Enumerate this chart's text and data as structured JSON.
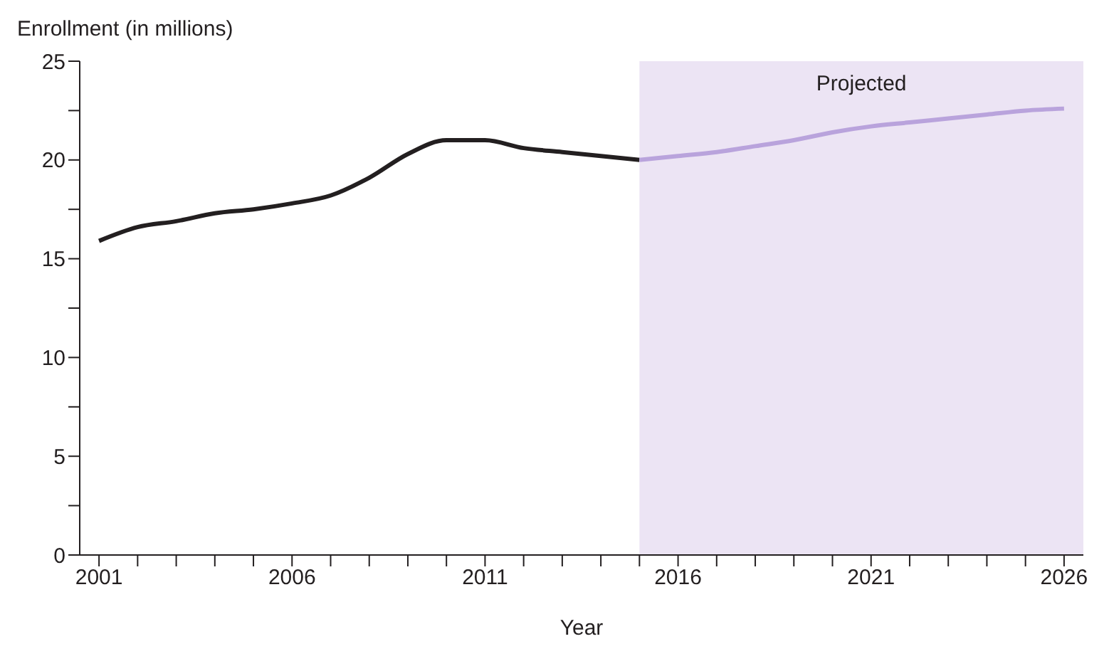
{
  "chart_data": {
    "type": "line",
    "ylabel": "Enrollment (in millions)",
    "xlabel": "Year",
    "x": [
      2001,
      2002,
      2003,
      2004,
      2005,
      2006,
      2007,
      2008,
      2009,
      2010,
      2011,
      2012,
      2013,
      2014,
      2015,
      2016,
      2017,
      2018,
      2019,
      2020,
      2021,
      2022,
      2023,
      2024,
      2025,
      2026
    ],
    "series": [
      {
        "color": "#231f20",
        "values": [
          15.9,
          16.6,
          16.9,
          17.3,
          17.5,
          17.8,
          18.2,
          19.1,
          20.3,
          21.0,
          21.0,
          20.6,
          20.4,
          20.2,
          20.0,
          null,
          null,
          null,
          null,
          null,
          null,
          null,
          null,
          null,
          null,
          null
        ]
      },
      {
        "color": "#b9a3dc",
        "values": [
          null,
          null,
          null,
          null,
          null,
          null,
          null,
          null,
          null,
          null,
          null,
          null,
          null,
          null,
          20.0,
          20.2,
          20.4,
          20.7,
          21.0,
          21.4,
          21.7,
          21.9,
          22.1,
          22.3,
          22.5,
          22.6
        ]
      }
    ],
    "xlim": [
      2000.5,
      2026.5
    ],
    "xticks": [
      2001,
      {
        "value": 2002,
        "label": null
      },
      {
        "value": 2003,
        "label": null
      },
      {
        "value": 2004,
        "label": null
      },
      {
        "value": 2005,
        "label": null
      },
      2006,
      {
        "value": 2007,
        "label": null
      },
      {
        "value": 2008,
        "label": null
      },
      {
        "value": 2009,
        "label": null
      },
      {
        "value": 2010,
        "label": null
      },
      2011,
      {
        "value": 2012,
        "label": null
      },
      {
        "value": 2013,
        "label": null
      },
      {
        "value": 2014,
        "label": null
      },
      {
        "value": 2015,
        "label": null
      },
      2016,
      {
        "value": 2017,
        "label": null
      },
      {
        "value": 2018,
        "label": null
      },
      {
        "value": 2019,
        "label": null
      },
      {
        "value": 2020,
        "label": null
      },
      2021,
      {
        "value": 2022,
        "label": null
      },
      {
        "value": 2023,
        "label": null
      },
      {
        "value": 2024,
        "label": null
      },
      {
        "value": 2025,
        "label": null
      },
      2026
    ],
    "ylim": [
      0,
      25
    ],
    "yticks": [
      0,
      {
        "value": 2.5,
        "label": null
      },
      5,
      {
        "value": 7.5,
        "label": null
      },
      10,
      {
        "value": 12.5,
        "label": null
      },
      15,
      {
        "value": 17.5,
        "label": null
      },
      20,
      {
        "value": 22.5,
        "label": null
      },
      25
    ],
    "bands": [
      {
        "axis": "x",
        "from": 2015,
        "to": 2026.5,
        "label": "Projected",
        "color": "#ece4f4"
      }
    ],
    "grid": false,
    "legend": false,
    "marker": "none",
    "line_style": "solid"
  }
}
